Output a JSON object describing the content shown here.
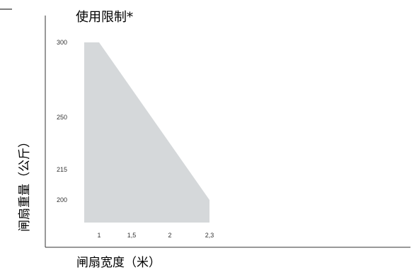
{
  "chart_data": {
    "type": "area",
    "title": "使用限制*",
    "xlabel": "闸扇宽度（米）",
    "ylabel": "闸扇重量（公斤）",
    "x_ticks": [
      "1",
      "1,5",
      "2",
      "2,3"
    ],
    "y_ticks": [
      "300",
      "250",
      "215",
      "200"
    ],
    "series": [
      {
        "values": [
          {
            "x": 0.85,
            "y": 300
          },
          {
            "x": 1.0,
            "y": 300
          },
          {
            "x": 2.3,
            "y": 200
          },
          {
            "x": 2.3,
            "y": 185
          },
          {
            "x": 0.85,
            "y": 185
          }
        ]
      }
    ],
    "fill_color": "#d5d8da",
    "grid": false
  }
}
